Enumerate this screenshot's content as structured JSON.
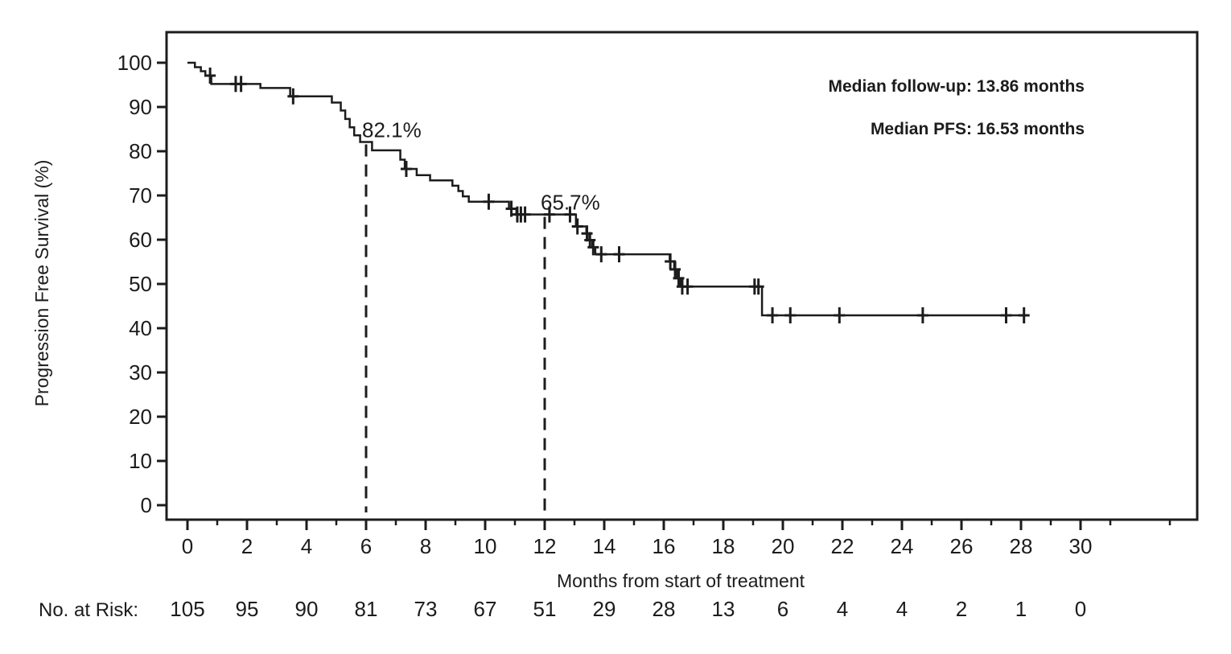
{
  "figure": {
    "ink_color": "#1c1c1c",
    "background": "#ffffff"
  },
  "chart_data": {
    "type": "line",
    "subtype": "kaplan_meier_step",
    "title": "",
    "xlabel": "Months from start of treatment",
    "ylabel": "Progression Free Survival (%)",
    "xlim": [
      0,
      34
    ],
    "ylim": [
      0,
      100
    ],
    "grid": false,
    "legend": false,
    "x_ticks_major": [
      0,
      2,
      4,
      6,
      8,
      10,
      12,
      14,
      16,
      18,
      20,
      22,
      24,
      26,
      28,
      30
    ],
    "x_ticks_minor": [
      1,
      3,
      5,
      7,
      9,
      11,
      13,
      15,
      17,
      19,
      21,
      23,
      25,
      27,
      29,
      31,
      33
    ],
    "y_ticks": [
      0,
      10,
      20,
      30,
      40,
      50,
      60,
      70,
      80,
      90,
      100
    ],
    "series": [
      {
        "name": "Progression Free Survival",
        "steps": [
          [
            0,
            100
          ],
          [
            0.25,
            99.0
          ],
          [
            0.45,
            98.1
          ],
          [
            0.6,
            97.1
          ],
          [
            0.8,
            95.2
          ],
          [
            2.45,
            94.3
          ],
          [
            3.45,
            92.4
          ],
          [
            4.85,
            91.0
          ],
          [
            5.15,
            89.2
          ],
          [
            5.3,
            87.3
          ],
          [
            5.45,
            85.4
          ],
          [
            5.6,
            83.6
          ],
          [
            5.8,
            82.1
          ],
          [
            6.2,
            80.2
          ],
          [
            7.15,
            78.1
          ],
          [
            7.3,
            76.0
          ],
          [
            7.7,
            74.6
          ],
          [
            8.15,
            73.4
          ],
          [
            8.9,
            72.2
          ],
          [
            9.1,
            71.0
          ],
          [
            9.25,
            69.8
          ],
          [
            9.45,
            68.6
          ],
          [
            10.8,
            67.0
          ],
          [
            11.05,
            65.7
          ],
          [
            13.05,
            63.0
          ],
          [
            13.4,
            61.4
          ],
          [
            13.5,
            59.9
          ],
          [
            13.6,
            58.3
          ],
          [
            13.7,
            56.7
          ],
          [
            16.2,
            55.1
          ],
          [
            16.35,
            53.3
          ],
          [
            16.45,
            51.3
          ],
          [
            16.55,
            49.4
          ],
          [
            19.3,
            42.9
          ]
        ],
        "end_time": 28.25,
        "censor_marks": [
          [
            0.76,
            97.1
          ],
          [
            1.62,
            95.2
          ],
          [
            1.8,
            95.2
          ],
          [
            3.55,
            92.4
          ],
          [
            7.35,
            76.0
          ],
          [
            10.12,
            68.6
          ],
          [
            10.88,
            67.0
          ],
          [
            11.08,
            65.7
          ],
          [
            11.2,
            65.7
          ],
          [
            11.34,
            65.7
          ],
          [
            12.16,
            65.7
          ],
          [
            12.85,
            65.7
          ],
          [
            13.1,
            63.0
          ],
          [
            13.42,
            61.4
          ],
          [
            13.52,
            59.9
          ],
          [
            13.63,
            58.3
          ],
          [
            13.9,
            56.7
          ],
          [
            14.5,
            56.7
          ],
          [
            16.22,
            55.1
          ],
          [
            16.38,
            53.3
          ],
          [
            16.5,
            51.3
          ],
          [
            16.62,
            49.4
          ],
          [
            16.8,
            49.4
          ],
          [
            19.05,
            49.4
          ],
          [
            19.18,
            49.4
          ],
          [
            19.65,
            42.9
          ],
          [
            20.25,
            42.9
          ],
          [
            21.9,
            42.9
          ],
          [
            24.7,
            42.9
          ],
          [
            27.5,
            42.9
          ],
          [
            28.1,
            42.9
          ]
        ]
      }
    ],
    "reference_lines": [
      {
        "x": 6,
        "y_top": 82.1,
        "label": "82.1%"
      },
      {
        "x": 12,
        "y_top": 65.7,
        "label": "65.7%"
      }
    ],
    "annotations": [
      {
        "id": "median-followup",
        "text": "Median follow-up: 13.86 months"
      },
      {
        "id": "median-pfs",
        "text": "Median PFS: 16.53 months"
      }
    ],
    "risk_table": {
      "label": "No. at Risk:",
      "time_points": [
        0,
        2,
        4,
        6,
        8,
        10,
        12,
        14,
        16,
        18,
        20,
        22,
        24,
        26,
        28,
        30
      ],
      "values": [
        105,
        95,
        90,
        81,
        73,
        67,
        51,
        29,
        28,
        13,
        6,
        4,
        4,
        2,
        1,
        0
      ]
    }
  }
}
